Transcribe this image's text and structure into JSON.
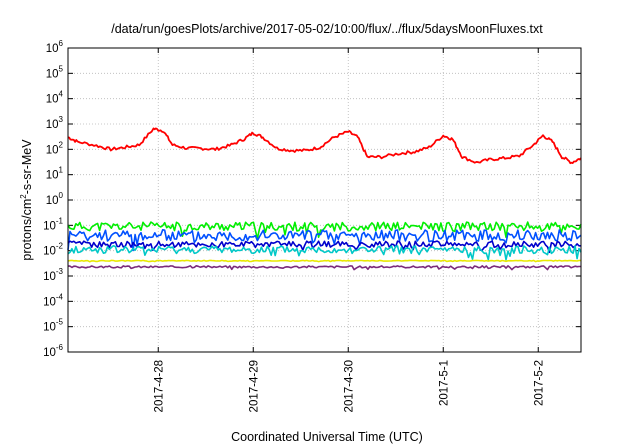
{
  "chart_data": {
    "type": "line",
    "title": "/data/run/goesPlots/archive/2017-05-02/10:00/flux/../flux/5daysMoonFluxes.txt",
    "xlabel": "Coordinated Universal Time (UTC)",
    "ylabel": {
      "pre": "protons/cm",
      "sup": "2",
      "post": "-s-sr-MeV"
    },
    "yscale": "log",
    "ylim_exp": [
      -6,
      6
    ],
    "grid": true,
    "x_domain_days": [
      0,
      5.4
    ],
    "x_ticks": [
      {
        "label": "2017-4-28",
        "day": 0.95
      },
      {
        "label": "2017-4-29",
        "day": 1.95
      },
      {
        "label": "2017-4-30",
        "day": 2.95
      },
      {
        "label": "2017-5-1",
        "day": 3.95
      },
      {
        "label": "2017-5-2",
        "day": 4.95
      }
    ],
    "y_tick_base": "10",
    "y_tick_exps": [
      6,
      5,
      4,
      3,
      2,
      1,
      0,
      -1,
      -2,
      -3,
      -4,
      -5,
      -6
    ],
    "series": [
      {
        "color": "#ff0000",
        "x": [
          0.0,
          0.1,
          0.3,
          0.45,
          0.6,
          0.75,
          0.9,
          1.0,
          1.1,
          1.25,
          1.4,
          1.55,
          1.7,
          1.85,
          1.95,
          2.05,
          2.2,
          2.35,
          2.5,
          2.65,
          2.8,
          2.95,
          3.05,
          3.15,
          3.3,
          3.5,
          3.65,
          3.8,
          3.95,
          4.05,
          4.15,
          4.3,
          4.45,
          4.6,
          4.75,
          4.9,
          5.0,
          5.1,
          5.2,
          5.3,
          5.4
        ],
        "y": [
          300,
          200,
          140,
          100,
          120,
          150,
          650,
          550,
          150,
          110,
          110,
          100,
          140,
          250,
          450,
          300,
          110,
          90,
          90,
          120,
          300,
          500,
          300,
          50,
          50,
          70,
          80,
          120,
          350,
          250,
          50,
          30,
          40,
          45,
          55,
          150,
          350,
          200,
          50,
          30,
          45
        ]
      },
      {
        "color": "#00ee00",
        "base": 0.09,
        "amp": 0.35,
        "seed": 11,
        "x": [
          0,
          5.4
        ]
      },
      {
        "color": "#0050ff",
        "base": 0.04,
        "amp": 0.45,
        "seed": 23,
        "x": [
          0,
          5.4
        ]
      },
      {
        "color": "#0000cc",
        "base": 0.018,
        "amp": 0.25,
        "seed": 37,
        "x": [
          0,
          5.4
        ]
      },
      {
        "color": "#00c8c8",
        "base": 0.011,
        "amp": 0.3,
        "seed": 41,
        "x": [
          0,
          5.4
        ]
      },
      {
        "color": "#e8e800",
        "base": 0.004,
        "amp": 0.03,
        "seed": 53,
        "x": [
          0,
          5.4
        ]
      },
      {
        "color": "#7b2a7b",
        "base": 0.0023,
        "amp": 0.08,
        "seed": 67,
        "x": [
          0,
          5.4
        ]
      }
    ]
  }
}
